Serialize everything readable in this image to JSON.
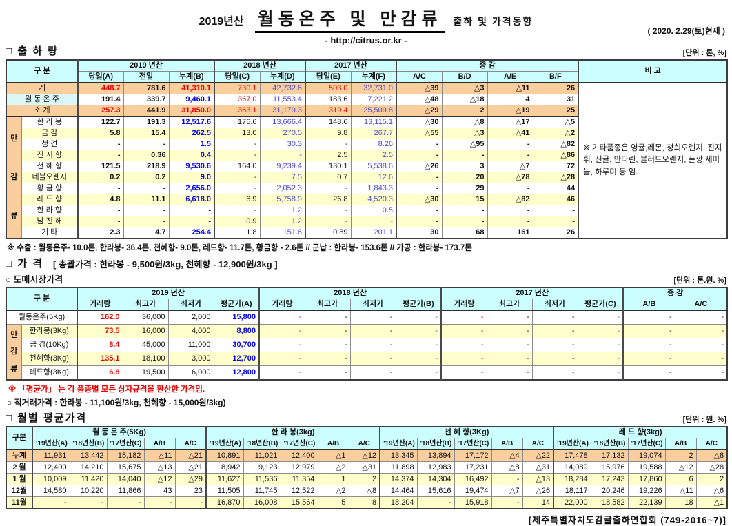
{
  "page": {
    "title_year": "2019년산",
    "title_main": "월동온주 및 만감류",
    "title_suffix": "출하 및 가격동향",
    "url": "- http://citrus.or.kr -",
    "date": "( 2020. 2.29(토)현재 )",
    "footer": "[제주특별자치도감귤출하연합회 (749-2016~7)]"
  },
  "colors": {
    "header_bg": "#CCFFFF",
    "subtotal_bg": "#FBCE9E",
    "alt_row_bg": "#FFFFCC",
    "wd_label_bg": "#DCF8F6",
    "red_text": "#e80000",
    "blue_bold_text": "#0000e6",
    "blue_text": "#4a4ace"
  },
  "shipment": {
    "section_title": "□ 출 하 량",
    "unit": "[단위 : 톤, %]",
    "header": {
      "gubun": "구      분",
      "groups": [
        "2019 년산",
        "2018 년산",
        "2017 년산",
        "증      감"
      ],
      "subcols": [
        "당일(A)",
        "전일",
        "누계(B)",
        "당일(C)",
        "누계(D)",
        "당일(E)",
        "누계(F)",
        "A/C",
        "B/D",
        "A/E",
        "B/F"
      ],
      "remark": "비 고"
    },
    "group_label": "만감류",
    "rows": [
      {
        "label": "계",
        "type": "t",
        "v": [
          "448.7",
          "781.6",
          "41,310.1",
          "730.1",
          "42,732.6",
          "503.0",
          "32,731.0",
          "△39",
          "△3",
          "△11",
          "26"
        ]
      },
      {
        "label": "월 동 온 주",
        "type": "m",
        "v": [
          "191.4",
          "339.7",
          "9,460.1",
          "367.0",
          "11,553.4",
          "183.6",
          "7,221.2",
          "△48",
          "△18",
          "4",
          "31"
        ]
      },
      {
        "label": "소      계",
        "type": "t",
        "v": [
          "257.3",
          "441.9",
          "31,850.0",
          "363.1",
          "31,179.3",
          "319.4",
          "25,509.8",
          "△29",
          "2",
          "△19",
          "25"
        ]
      },
      {
        "label": "한 라 봉",
        "type": "p",
        "v": [
          "122.7",
          "191.3",
          "12,517.6",
          "176.6",
          "13,666.4",
          "148.6",
          "13,115.1",
          "△30",
          "△8",
          "△17",
          "△5"
        ]
      },
      {
        "label": "금      감",
        "type": "p",
        "v": [
          "5.8",
          "15.4",
          "262.5",
          "13.0",
          "270.5",
          "9.8",
          "267.7",
          "△55",
          "△3",
          "△41",
          "△2"
        ]
      },
      {
        "label": "청      견",
        "type": "p",
        "v": [
          "-",
          "-",
          "1.5",
          "-",
          "30.3",
          "-",
          "8.26",
          "-",
          "△95",
          "-",
          "△82"
        ]
      },
      {
        "label": "진 지 향",
        "type": "p",
        "v": [
          "-",
          "0.36",
          "0.4",
          "-",
          "-",
          "2.5",
          "2.5",
          "-",
          "-",
          "-",
          "△86"
        ]
      },
      {
        "label": "천 혜 향",
        "type": "p",
        "v": [
          "121.5",
          "218.9",
          "9,530.6",
          "164.0",
          "9,239.4",
          "130.1",
          "5,538.6",
          "△26",
          "3",
          "△7",
          "72"
        ]
      },
      {
        "label": "네블오렌지",
        "type": "p",
        "v": [
          "0.2",
          "0.2",
          "9.0",
          "-",
          "7.5",
          "0.7",
          "12.6",
          "-",
          "20",
          "△78",
          "△28"
        ]
      },
      {
        "label": "황 금 향",
        "type": "p",
        "v": [
          "-",
          "-",
          "2,656.0",
          "-",
          "2,052.3",
          "-",
          "1,843.3",
          "-",
          "29",
          "-",
          "44"
        ]
      },
      {
        "label": "레 드 향",
        "type": "p",
        "v": [
          "4.8",
          "11.1",
          "6,618.0",
          "6.9",
          "5,758.9",
          "26.8",
          "4,520.3",
          "△30",
          "15",
          "△82",
          "46"
        ]
      },
      {
        "label": "한 라 향",
        "type": "p",
        "v": [
          "-",
          "-",
          "-",
          "-",
          "1.2",
          "-",
          "0.5",
          "-",
          "-",
          "-",
          "-"
        ]
      },
      {
        "label": "남 진 해",
        "type": "p",
        "v": [
          "-",
          "-",
          "-",
          "0.9",
          "1.2",
          "-",
          "-",
          "-",
          "-",
          "-",
          "-"
        ]
      },
      {
        "label": "기      타",
        "type": "p",
        "v": [
          "2.3",
          "4.7",
          "254.4",
          "1.8",
          "151.6",
          "0.89",
          "201.1",
          "30",
          "68",
          "161",
          "26"
        ]
      }
    ],
    "remark_note": "※ 기타품종은 영귤,레몬, 청희오렌지, 진지휘, 진귤, 만다린, 블러드오렌지, 폰깡,세미놀, 하루미 등 임.",
    "footnote": "※ 수출 : 월동온주- 10.0톤, 한라봉- 36.4톤, 천혜향- 9.0톤, 레드향- 11.7톤, 황금향 - 2.6톤  //  군납 : 한라봉- 153.6톤  //  가공 : 한라봉- 173.7톤"
  },
  "price": {
    "section_title": "□ 가      격",
    "summary": "[ 총괄가격 : 한라봉 - 9,500원/3kg, 천혜향 - 12,900원/3kg ]",
    "wholesale_title": "○ 도매시장가격",
    "unit": "[단위 : 톤.원. %]",
    "header": {
      "gubun": "구      분",
      "groups": [
        "2019 년산",
        "2018 년산",
        "2017 년산",
        "증   감"
      ],
      "subcols": [
        "거래량",
        "최고가",
        "최저가",
        "평균가(A)",
        "거래량",
        "최고가",
        "최저가",
        "평균가(B)",
        "거래량",
        "최고가",
        "최저가",
        "평균가(C)",
        "A/B",
        "A/C"
      ]
    },
    "group_label": "만감류",
    "rows": [
      {
        "label": "월동온주(5Kg)",
        "v": [
          "162.0",
          "36,000",
          "2,000",
          "15,800",
          "-",
          "-",
          "-",
          "-",
          "-",
          "-",
          "-",
          "-",
          "-",
          "-"
        ]
      },
      {
        "label": "한라봉(3Kg)",
        "v": [
          "73.5",
          "16,000",
          "4,000",
          "8,800",
          "-",
          "-",
          "-",
          "-",
          "-",
          "-",
          "-",
          "-",
          "-",
          "-"
        ]
      },
      {
        "label": "금 감(10Kg)",
        "v": [
          "8.4",
          "45,000",
          "11,000",
          "30,700",
          "-",
          "-",
          "-",
          "-",
          "-",
          "-",
          "-",
          "-",
          "-",
          "-"
        ]
      },
      {
        "label": "천혜향(3Kg)",
        "v": [
          "135.1",
          "18,100",
          "3,000",
          "12,700",
          "-",
          "-",
          "-",
          "-",
          "-",
          "-",
          "-",
          "-",
          "-",
          "-"
        ]
      },
      {
        "label": "레드향(3Kg)",
        "v": [
          "6.8",
          "19,500",
          "6,000",
          "12,800",
          "-",
          "-",
          "-",
          "-",
          "-",
          "-",
          "-",
          "-",
          "-",
          "-"
        ]
      }
    ],
    "avg_note": "※ 「평균가」 는 각 품종별 모든 상자규격을 환산한 가격임.",
    "direct_note": "○ 직거래가격 : 한라봉 - 11,100원/3kg,  천혜향 - 15,000원/3kg)"
  },
  "monthly": {
    "section_title": "□ 월별 평균가격",
    "unit": "[단위 : 원. %]",
    "header": {
      "gubun": "구분",
      "groups": [
        "월 동 온 주(5Kg)",
        "한  라  봉(3kg)",
        "천 혜 향(3Kg)",
        "레 드 향(3kg)"
      ],
      "subcols": [
        "'19년산(A)",
        "'18년산(B)",
        "'17년산(C)",
        "A/B",
        "A/C"
      ]
    },
    "rows": [
      {
        "label": "누계",
        "v": [
          "11,931",
          "13,442",
          "15,182",
          "△11",
          "△21",
          "10,891",
          "11,021",
          "12,400",
          "△1",
          "△12",
          "13,345",
          "13,894",
          "17,172",
          "△4",
          "△22",
          "17,478",
          "17,132",
          "19,074",
          "2",
          "△8"
        ]
      },
      {
        "label": "2 월",
        "v": [
          "12,400",
          "14,210",
          "15,675",
          "△13",
          "△21",
          "8,942",
          "9,123",
          "12,979",
          "△2",
          "△31",
          "11,898",
          "12,983",
          "17,231",
          "△8",
          "△31",
          "14,089",
          "15,976",
          "19,588",
          "△12",
          "△28"
        ]
      },
      {
        "label": "1 월",
        "v": [
          "10,009",
          "11,420",
          "14,040",
          "△12",
          "△29",
          "11,627",
          "11,536",
          "11,354",
          "1",
          "2",
          "14,374",
          "14,304",
          "16,492",
          "-",
          "△13",
          "18,284",
          "17,243",
          "17,860",
          "6",
          "2"
        ]
      },
      {
        "label": "12월",
        "v": [
          "14,580",
          "10,220",
          "11,866",
          "43",
          "23",
          "11,505",
          "11,745",
          "12,522",
          "△2",
          "△8",
          "14,464",
          "15,616",
          "19,474",
          "△7",
          "△26",
          "18,117",
          "20,246",
          "19,226",
          "△11",
          "△6"
        ]
      },
      {
        "label": "11월",
        "v": [
          "-",
          "-",
          "-",
          "-",
          "-",
          "16,870",
          "16,008",
          "15,564",
          "5",
          "8",
          "18,204",
          "-",
          "15,918",
          "-",
          "14",
          "22,000",
          "18,582",
          "22,139",
          "18",
          "△1"
        ]
      }
    ]
  }
}
